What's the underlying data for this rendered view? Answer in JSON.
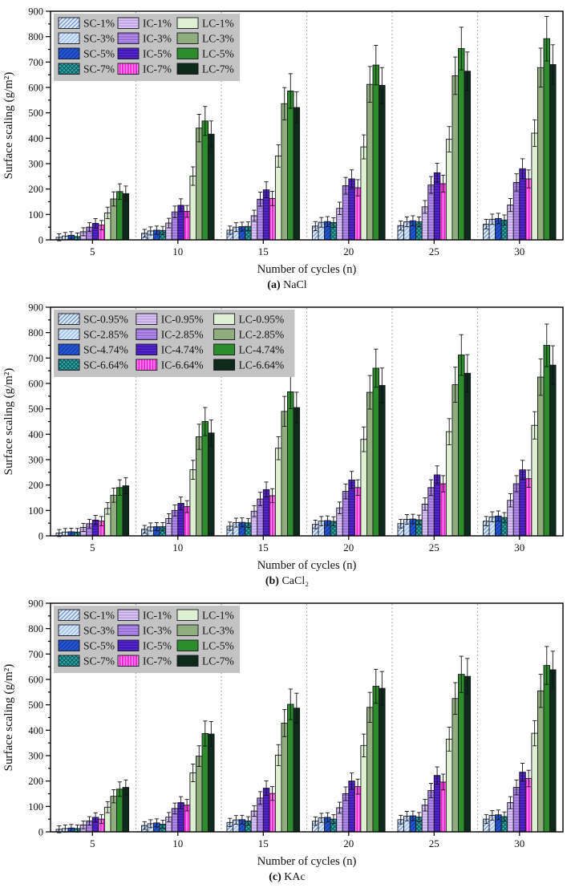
{
  "figure_name": "surface-scaling-bar-charts",
  "colors": {
    "bar_border": "#16161f",
    "error_bar": "#111111",
    "legend_bg": "#c3c3c3",
    "separator": "#9f9f9f",
    "axis": "#000000",
    "text": "#111111"
  },
  "styles": [
    {
      "key": "SC-low",
      "fill": "#dfeafa",
      "hatch": "diag",
      "hatch_color": "#6d8ec9"
    },
    {
      "key": "SC-mid",
      "fill": "#a9c6ec",
      "hatch": "diag",
      "hatch_color": "#eef4fd"
    },
    {
      "key": "SC-high",
      "fill": "#2457d6",
      "hatch": "diag",
      "hatch_color": "#14399f"
    },
    {
      "key": "SC-max",
      "fill": "#2fadad",
      "hatch": "cross",
      "hatch_color": "#0e5558"
    },
    {
      "key": "IC-low",
      "fill": "#d9c6f0",
      "hatch": "horiz",
      "hatch_color": "#b092de"
    },
    {
      "key": "IC-mid",
      "fill": "#b18ce4",
      "hatch": "horiz",
      "hatch_color": "#8a5fd0"
    },
    {
      "key": "IC-high",
      "fill": "#5526cf",
      "hatch": "horiz",
      "hatch_color": "#37109b"
    },
    {
      "key": "IC-max",
      "fill": "#f320d8",
      "hatch": "vert",
      "hatch_color": "#ff9bf0"
    },
    {
      "key": "LC-low",
      "fill": "#def0d2",
      "hatch": "none",
      "hatch_color": ""
    },
    {
      "key": "LC-mid",
      "fill": "#8fad7d",
      "hatch": "none",
      "hatch_color": ""
    },
    {
      "key": "LC-high",
      "fill": "#2d8c2b",
      "hatch": "none",
      "hatch_color": ""
    },
    {
      "key": "LC-max",
      "fill": "#0d2a1b",
      "hatch": "none",
      "hatch_color": ""
    }
  ],
  "chart_data": [
    {
      "id": "a",
      "type": "bar",
      "caption": {
        "index": "(a)",
        "salt": "NaCl"
      },
      "xlabel": "Number of cycles (n)",
      "ylabel": "Surface scaling (g/m²)",
      "ylim": [
        0,
        900
      ],
      "ytick_major": 100,
      "ytick_minor": 50,
      "grid": false,
      "group_separators": "dotted",
      "legend_position": "top-left",
      "error_bars": "estimated ±3% capped",
      "categories": [
        5,
        10,
        15,
        20,
        25,
        30
      ],
      "series": [
        {
          "name": "SC-1%",
          "style": 0,
          "values": [
            10,
            26,
            38,
            54,
            56,
            62
          ]
        },
        {
          "name": "SC-3%",
          "style": 1,
          "values": [
            15,
            35,
            50,
            69,
            71,
            81
          ]
        },
        {
          "name": "SC-5%",
          "style": 2,
          "values": [
            18,
            38,
            52,
            72,
            75,
            84
          ]
        },
        {
          "name": "SC-7%",
          "style": 3,
          "values": [
            13,
            37,
            53,
            68,
            71,
            78
          ]
        },
        {
          "name": "IC-1%",
          "style": 4,
          "values": [
            32,
            66,
            95,
            124,
            130,
            137
          ]
        },
        {
          "name": "IC-3%",
          "style": 5,
          "values": [
            50,
            110,
            160,
            213,
            216,
            226
          ]
        },
        {
          "name": "IC-5%",
          "style": 6,
          "values": [
            65,
            136,
            197,
            240,
            264,
            280
          ]
        },
        {
          "name": "IC-7%",
          "style": 7,
          "values": [
            58,
            112,
            163,
            205,
            221,
            240
          ]
        },
        {
          "name": "LC-1%",
          "style": 8,
          "values": [
            106,
            251,
            330,
            366,
            396,
            420
          ]
        },
        {
          "name": "LC-3%",
          "style": 9,
          "values": [
            161,
            440,
            536,
            612,
            646,
            678
          ]
        },
        {
          "name": "LC-5%",
          "style": 10,
          "values": [
            190,
            468,
            586,
            688,
            753,
            792
          ]
        },
        {
          "name": "LC-7%",
          "style": 11,
          "values": [
            182,
            416,
            521,
            608,
            664,
            690
          ]
        }
      ]
    },
    {
      "id": "b",
      "type": "bar",
      "caption": {
        "index": "(b)",
        "salt": "CaCl₂"
      },
      "xlabel": "Number of cycles (n)",
      "ylabel": "Surface scaling (g/m²)",
      "ylim": [
        0,
        900
      ],
      "ytick_major": 100,
      "ytick_minor": 50,
      "grid": false,
      "group_separators": "dotted",
      "legend_position": "top-left",
      "error_bars": "estimated ±3% capped",
      "categories": [
        5,
        10,
        15,
        20,
        25,
        30
      ],
      "series": [
        {
          "name": "SC-0.95%",
          "style": 0,
          "values": [
            11,
            26,
            38,
            45,
            48,
            58
          ]
        },
        {
          "name": "SC-2.85%",
          "style": 1,
          "values": [
            15,
            35,
            52,
            58,
            65,
            75
          ]
        },
        {
          "name": "SC-4.74%",
          "style": 2,
          "values": [
            16,
            36,
            53,
            60,
            66,
            78
          ]
        },
        {
          "name": "SC-6.64%",
          "style": 3,
          "values": [
            15,
            36,
            51,
            57,
            63,
            72
          ]
        },
        {
          "name": "IC-0.95%",
          "style": 4,
          "values": [
            33,
            68,
            97,
            110,
            125,
            140
          ]
        },
        {
          "name": "IC-2.85%",
          "style": 5,
          "values": [
            48,
            100,
            145,
            175,
            190,
            205
          ]
        },
        {
          "name": "IC-4.74%",
          "style": 6,
          "values": [
            62,
            128,
            182,
            220,
            240,
            260
          ]
        },
        {
          "name": "IC-6.64%",
          "style": 7,
          "values": [
            58,
            115,
            158,
            190,
            205,
            225
          ]
        },
        {
          "name": "LC-0.95%",
          "style": 8,
          "values": [
            108,
            260,
            345,
            380,
            410,
            435
          ]
        },
        {
          "name": "LC-2.85%",
          "style": 9,
          "values": [
            160,
            390,
            490,
            565,
            595,
            625
          ]
        },
        {
          "name": "LC-4.74%",
          "style": 10,
          "values": [
            190,
            450,
            567,
            660,
            712,
            750
          ]
        },
        {
          "name": "LC-6.64%",
          "style": 11,
          "values": [
            197,
            405,
            505,
            592,
            640,
            672
          ]
        }
      ]
    },
    {
      "id": "c",
      "type": "bar",
      "caption": {
        "index": "(c)",
        "salt": "KAc"
      },
      "xlabel": "Number of cycles (n)",
      "ylabel": "Surface scaling (g/m²)",
      "ylim": [
        0,
        900
      ],
      "ytick_major": 100,
      "ytick_minor": 50,
      "grid": false,
      "group_separators": "dotted",
      "legend_position": "top-left",
      "error_bars": "estimated ±3% capped",
      "categories": [
        5,
        10,
        15,
        20,
        25,
        30
      ],
      "series": [
        {
          "name": "SC-1%",
          "style": 0,
          "values": [
            10,
            25,
            37,
            42,
            48,
            50
          ]
        },
        {
          "name": "SC-3%",
          "style": 1,
          "values": [
            13,
            32,
            47,
            55,
            62,
            65
          ]
        },
        {
          "name": "SC-5%",
          "style": 2,
          "values": [
            15,
            35,
            48,
            57,
            63,
            67
          ]
        },
        {
          "name": "SC-7%",
          "style": 3,
          "values": [
            13,
            30,
            43,
            50,
            58,
            60
          ]
        },
        {
          "name": "IC-1%",
          "style": 4,
          "values": [
            27,
            58,
            82,
            95,
            105,
            115
          ]
        },
        {
          "name": "IC-3%",
          "style": 5,
          "values": [
            43,
            92,
            133,
            150,
            163,
            175
          ]
        },
        {
          "name": "IC-5%",
          "style": 6,
          "values": [
            57,
            115,
            172,
            200,
            222,
            235
          ]
        },
        {
          "name": "IC-7%",
          "style": 7,
          "values": [
            50,
            105,
            151,
            178,
            196,
            210
          ]
        },
        {
          "name": "LC-1%",
          "style": 8,
          "values": [
            97,
            232,
            302,
            340,
            365,
            388
          ]
        },
        {
          "name": "LC-3%",
          "style": 9,
          "values": [
            140,
            298,
            428,
            490,
            525,
            555
          ]
        },
        {
          "name": "LC-5%",
          "style": 10,
          "values": [
            168,
            387,
            502,
            573,
            620,
            655
          ]
        },
        {
          "name": "LC-7%",
          "style": 11,
          "values": [
            175,
            385,
            487,
            565,
            612,
            638
          ]
        }
      ]
    }
  ]
}
